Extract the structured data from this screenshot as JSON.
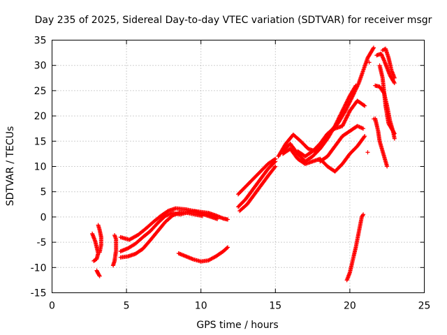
{
  "chart_data": {
    "type": "scatter",
    "title": "Day 235 of 2025, Sidereal Day-to-day VTEC variation (SDTVAR) for receiver msgr",
    "xlabel": "GPS time / hours",
    "ylabel": "SDTVAR / TECUs",
    "xlim": [
      0,
      25
    ],
    "ylim": [
      -15,
      35
    ],
    "x_ticks": [
      0,
      5,
      10,
      15,
      20,
      25
    ],
    "y_ticks": [
      -15,
      -10,
      -5,
      0,
      5,
      10,
      15,
      20,
      25,
      30,
      35
    ],
    "grid": true,
    "marker": "plus",
    "color": "#ff0000",
    "segments": [
      {
        "points": [
          [
            2.7,
            -3.3
          ],
          [
            2.9,
            -4.8
          ],
          [
            3.0,
            -6.0
          ],
          [
            3.1,
            -7.2
          ],
          [
            3.0,
            -8.3
          ],
          [
            2.8,
            -8.7
          ]
        ]
      },
      {
        "points": [
          [
            3.1,
            -1.6
          ],
          [
            3.2,
            -2.6
          ],
          [
            3.3,
            -4.0
          ],
          [
            3.3,
            -5.5
          ],
          [
            3.2,
            -7.0
          ]
        ]
      },
      {
        "points": [
          [
            3.0,
            -10.6
          ],
          [
            3.1,
            -11.2
          ],
          [
            3.2,
            -11.7
          ]
        ]
      },
      {
        "points": [
          [
            4.2,
            -3.6
          ],
          [
            4.3,
            -4.4
          ],
          [
            4.3,
            -6.6
          ],
          [
            4.2,
            -8.7
          ],
          [
            4.1,
            -9.6
          ]
        ]
      },
      {
        "points": [
          [
            4.6,
            -4.0
          ],
          [
            5.2,
            -4.5
          ],
          [
            5.8,
            -3.5
          ],
          [
            6.3,
            -2.3
          ],
          [
            6.8,
            -1.0
          ],
          [
            7.3,
            0.2
          ],
          [
            7.8,
            1.2
          ],
          [
            8.3,
            1.7
          ],
          [
            9.0,
            1.5
          ],
          [
            9.5,
            1.2
          ],
          [
            10.0,
            1.0
          ],
          [
            10.5,
            0.8
          ],
          [
            11.0,
            0.3
          ],
          [
            11.5,
            -0.3
          ],
          [
            11.8,
            -0.5
          ]
        ]
      },
      {
        "points": [
          [
            4.6,
            -6.8
          ],
          [
            5.1,
            -6.2
          ],
          [
            5.6,
            -5.3
          ],
          [
            6.1,
            -4.0
          ],
          [
            6.6,
            -2.8
          ],
          [
            7.1,
            -1.2
          ],
          [
            7.6,
            0.2
          ],
          [
            8.1,
            0.8
          ],
          [
            8.6,
            0.5
          ],
          [
            9.1,
            0.9
          ],
          [
            9.6,
            1.1
          ],
          [
            10.1,
            0.6
          ],
          [
            10.6,
            0.1
          ],
          [
            11.1,
            -0.4
          ]
        ]
      },
      {
        "points": [
          [
            4.6,
            -8.0
          ],
          [
            5.1,
            -7.8
          ],
          [
            5.6,
            -7.3
          ],
          [
            6.1,
            -6.3
          ],
          [
            6.6,
            -4.6
          ],
          [
            7.1,
            -2.8
          ],
          [
            7.6,
            -1.0
          ],
          [
            8.1,
            0.3
          ],
          [
            8.6,
            0.9
          ],
          [
            9.1,
            0.8
          ],
          [
            9.6,
            0.5
          ],
          [
            10.1,
            0.2
          ]
        ]
      },
      {
        "points": [
          [
            8.5,
            -7.2
          ],
          [
            9.0,
            -7.8
          ],
          [
            9.5,
            -8.4
          ],
          [
            10.0,
            -8.8
          ],
          [
            10.5,
            -8.6
          ],
          [
            11.0,
            -7.8
          ],
          [
            11.5,
            -6.8
          ],
          [
            11.8,
            -6.0
          ]
        ]
      },
      {
        "points": [
          [
            12.5,
            4.5
          ],
          [
            13.0,
            6.0
          ],
          [
            13.5,
            7.5
          ],
          [
            14.0,
            9.0
          ],
          [
            14.5,
            10.5
          ],
          [
            15.0,
            11.5
          ]
        ]
      },
      {
        "points": [
          [
            12.5,
            2.0
          ],
          [
            13.0,
            3.5
          ],
          [
            13.5,
            5.5
          ],
          [
            14.0,
            7.5
          ],
          [
            14.5,
            9.5
          ],
          [
            15.0,
            11.0
          ]
        ]
      },
      {
        "points": [
          [
            12.6,
            1.2
          ],
          [
            13.1,
            2.5
          ],
          [
            13.6,
            4.5
          ],
          [
            14.1,
            6.5
          ],
          [
            14.6,
            8.5
          ],
          [
            15.0,
            10.0
          ]
        ]
      },
      {
        "points": [
          [
            15.2,
            12.0
          ],
          [
            15.7,
            14.5
          ],
          [
            16.2,
            16.3
          ],
          [
            16.7,
            15.0
          ],
          [
            17.2,
            13.5
          ],
          [
            17.7,
            13.0
          ],
          [
            18.2,
            15.0
          ],
          [
            18.7,
            17.0
          ],
          [
            19.2,
            18.5
          ],
          [
            19.7,
            21.0
          ],
          [
            20.2,
            24.0
          ],
          [
            20.6,
            26.5
          ],
          [
            20.9,
            29.0
          ],
          [
            21.2,
            31.5
          ],
          [
            21.4,
            32.5
          ],
          [
            21.6,
            33.5
          ]
        ]
      },
      {
        "points": [
          [
            15.5,
            13.0
          ],
          [
            16.0,
            14.5
          ],
          [
            16.5,
            12.5
          ],
          [
            17.0,
            11.0
          ],
          [
            17.5,
            12.0
          ],
          [
            18.0,
            13.5
          ],
          [
            18.5,
            15.5
          ],
          [
            19.0,
            18.0
          ],
          [
            19.5,
            21.0
          ],
          [
            20.0,
            24.0
          ],
          [
            20.4,
            26.0
          ]
        ]
      },
      {
        "points": [
          [
            15.5,
            12.5
          ],
          [
            16.0,
            13.5
          ],
          [
            16.5,
            11.5
          ],
          [
            17.0,
            10.5
          ],
          [
            17.5,
            11.0
          ],
          [
            18.0,
            11.5
          ],
          [
            18.5,
            10.0
          ],
          [
            19.0,
            9.0
          ],
          [
            19.5,
            10.5
          ],
          [
            20.0,
            12.5
          ],
          [
            20.5,
            14.0
          ],
          [
            21.0,
            16.0
          ]
        ]
      },
      {
        "points": [
          [
            16.5,
            13.0
          ],
          [
            17.0,
            12.0
          ],
          [
            17.5,
            13.0
          ],
          [
            18.0,
            14.5
          ],
          [
            18.5,
            16.5
          ],
          [
            19.0,
            17.5
          ],
          [
            19.5,
            18.0
          ],
          [
            20.0,
            21.0
          ],
          [
            20.5,
            23.0
          ],
          [
            21.0,
            22.0
          ]
        ]
      },
      {
        "points": [
          [
            18.0,
            11.0
          ],
          [
            18.5,
            12.0
          ],
          [
            19.0,
            14.0
          ],
          [
            19.5,
            16.0
          ],
          [
            20.0,
            17.0
          ],
          [
            20.5,
            18.0
          ],
          [
            20.9,
            17.5
          ]
        ]
      },
      {
        "points": [
          [
            19.8,
            -12.5
          ],
          [
            20.0,
            -11.0
          ],
          [
            20.2,
            -8.5
          ],
          [
            20.4,
            -6.0
          ],
          [
            20.6,
            -3.0
          ],
          [
            20.8,
            0.0
          ],
          [
            20.9,
            0.5
          ]
        ]
      },
      {
        "points": [
          [
            21.7,
            19.5
          ],
          [
            21.9,
            17.0
          ],
          [
            22.0,
            15.0
          ],
          [
            22.2,
            13.0
          ],
          [
            22.4,
            11.0
          ],
          [
            22.5,
            10.0
          ]
        ]
      },
      {
        "points": [
          [
            21.7,
            26.0
          ],
          [
            22.0,
            25.8
          ],
          [
            22.3,
            24.5
          ],
          [
            22.5,
            22.0
          ],
          [
            22.7,
            19.0
          ],
          [
            22.9,
            17.0
          ],
          [
            23.0,
            15.5
          ]
        ]
      },
      {
        "points": [
          [
            21.8,
            32.0
          ],
          [
            22.1,
            32.3
          ],
          [
            22.3,
            31.0
          ],
          [
            22.5,
            29.5
          ],
          [
            22.7,
            28.0
          ],
          [
            22.9,
            27.0
          ],
          [
            23.0,
            26.5
          ]
        ]
      },
      {
        "points": [
          [
            22.2,
            33.0
          ],
          [
            22.4,
            33.3
          ],
          [
            22.6,
            31.5
          ],
          [
            22.8,
            29.0
          ],
          [
            23.0,
            27.5
          ]
        ]
      },
      {
        "points": [
          [
            22.0,
            30.0
          ],
          [
            22.2,
            27.5
          ],
          [
            22.4,
            22.0
          ],
          [
            22.6,
            18.5
          ],
          [
            22.8,
            17.5
          ],
          [
            23.0,
            16.5
          ]
        ]
      }
    ],
    "isolated_points": [
      [
        21.2,
        12.8
      ],
      [
        21.3,
        30.6
      ],
      [
        21.6,
        19.4
      ]
    ]
  }
}
